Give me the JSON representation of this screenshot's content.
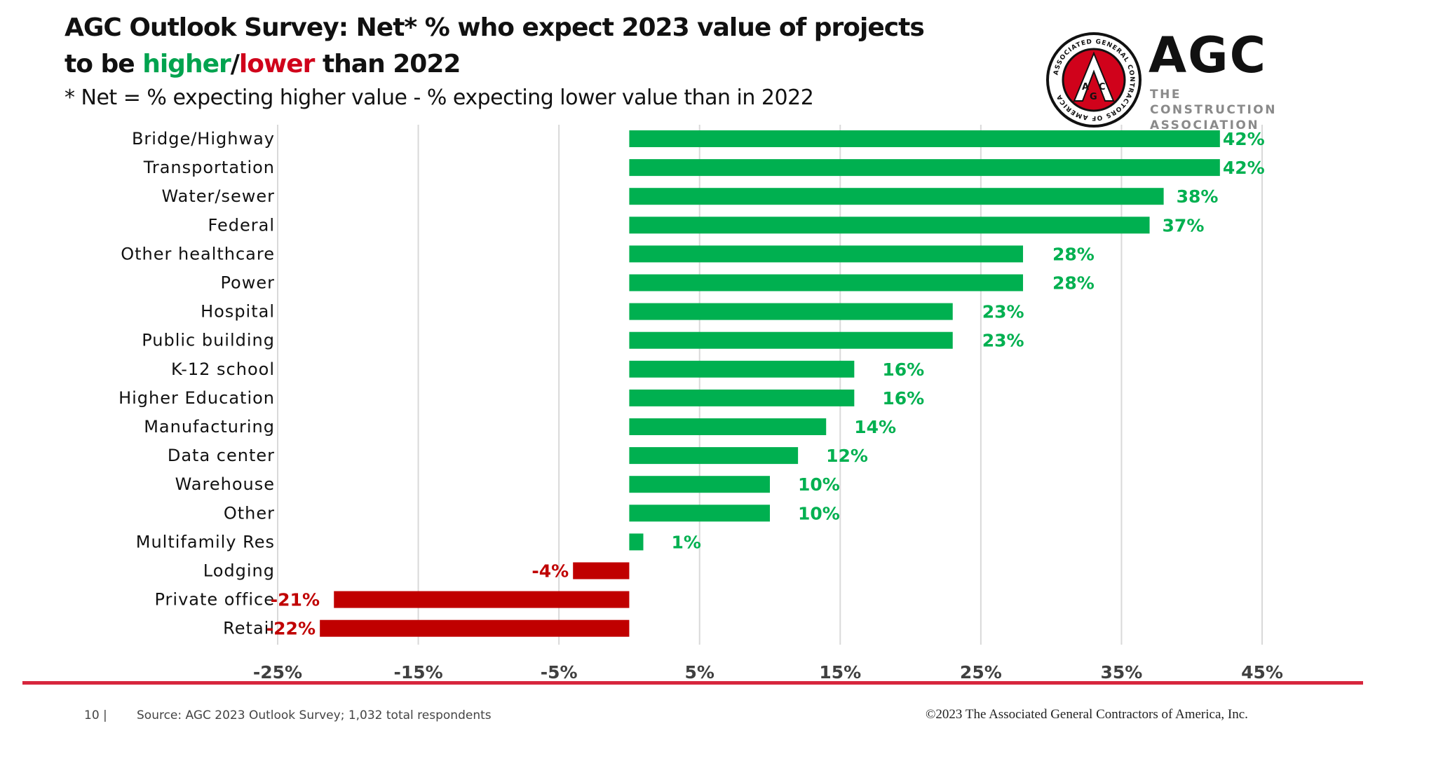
{
  "header": {
    "title_line1": "AGC Outlook Survey: Net* % who expect 2023 value of projects",
    "title_line2_prefix": "to be ",
    "title_higher": "higher",
    "title_slash": "/",
    "title_lower": "lower",
    "title_line2_suffix": " than 2022",
    "subtitle": "* Net = %  expecting higher value   - % expecting lower value than in 2022"
  },
  "logo": {
    "wordmark": "AGC",
    "tagline_line1": "THE CONSTRUCTION",
    "tagline_line2": "ASSOCIATION",
    "seal_text": "ASSOCIATED GENERAL CONTRACTORS OF AMERICA",
    "seal_letters": "AGC"
  },
  "colors": {
    "positive": "#00b050",
    "negative": "#c00000",
    "accent_red": "#d7263d",
    "grid": "#d9d9d9"
  },
  "chart_data": {
    "type": "bar",
    "orientation": "horizontal",
    "categories": [
      "Bridge/Highway",
      "Transportation",
      "Water/sewer",
      "Federal",
      "Other healthcare",
      "Power",
      "Hospital",
      "Public building",
      "K-12 school",
      "Higher Education",
      "Manufacturing",
      "Data center",
      "Warehouse",
      "Other",
      "Multifamily Res",
      "Lodging",
      "Private office",
      "Retail"
    ],
    "values": [
      42,
      42,
      38,
      37,
      28,
      28,
      23,
      23,
      16,
      16,
      14,
      12,
      10,
      10,
      1,
      -4,
      -21,
      -22
    ],
    "value_labels": [
      "42%",
      "42%",
      "38%",
      "37%",
      "28%",
      "28%",
      "23%",
      "23%",
      "16%",
      "16%",
      "14%",
      "12%",
      "10%",
      "10%",
      "1%",
      "-4%",
      "-21%",
      "-22%"
    ],
    "xlim": [
      -25,
      45
    ],
    "xticks": [
      -25,
      -15,
      -5,
      5,
      15,
      25,
      35,
      45
    ],
    "xtick_labels": [
      "-25%",
      "-15%",
      "-5%",
      "5%",
      "15%",
      "25%",
      "35%",
      "45%"
    ],
    "grid": "vertical",
    "legend": "none"
  },
  "footer": {
    "page_number": "10 |",
    "source": "Source: AGC 2023 Outlook Survey; 1,032 total respondents",
    "copyright": "©2023 The Associated General Contractors of America, Inc."
  }
}
